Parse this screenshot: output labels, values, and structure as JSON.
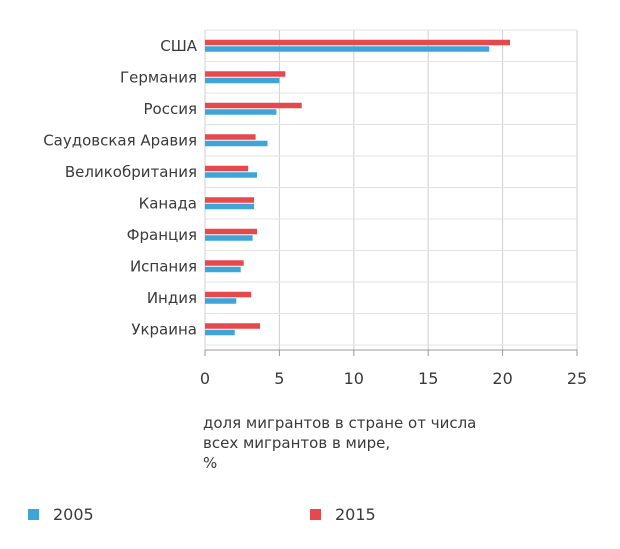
{
  "chart_data": {
    "type": "bar",
    "orientation": "horizontal",
    "categories": [
      "США",
      "Германия",
      "Россия",
      "Саудовская Аравия",
      "Великобритания",
      "Канада",
      "Франция",
      "Испания",
      "Индия",
      "Украина"
    ],
    "series": [
      {
        "name": "2005",
        "color": "#3fa5d9",
        "values": [
          19.1,
          5.0,
          4.8,
          4.2,
          3.5,
          3.3,
          3.2,
          2.4,
          2.1,
          2.0
        ]
      },
      {
        "name": "2015",
        "color": "#e5484d",
        "values": [
          20.5,
          5.4,
          6.5,
          3.4,
          2.9,
          3.3,
          3.5,
          2.6,
          3.1,
          3.7
        ]
      }
    ],
    "xlim": [
      0,
      25
    ],
    "xticks": [
      0,
      5,
      10,
      15,
      20,
      25
    ],
    "xlabel_lines": [
      "доля мигрантов в стране от числа",
      "всех мигрантов в мире,",
      "%"
    ],
    "grid": true,
    "legend_position": "bottom"
  }
}
